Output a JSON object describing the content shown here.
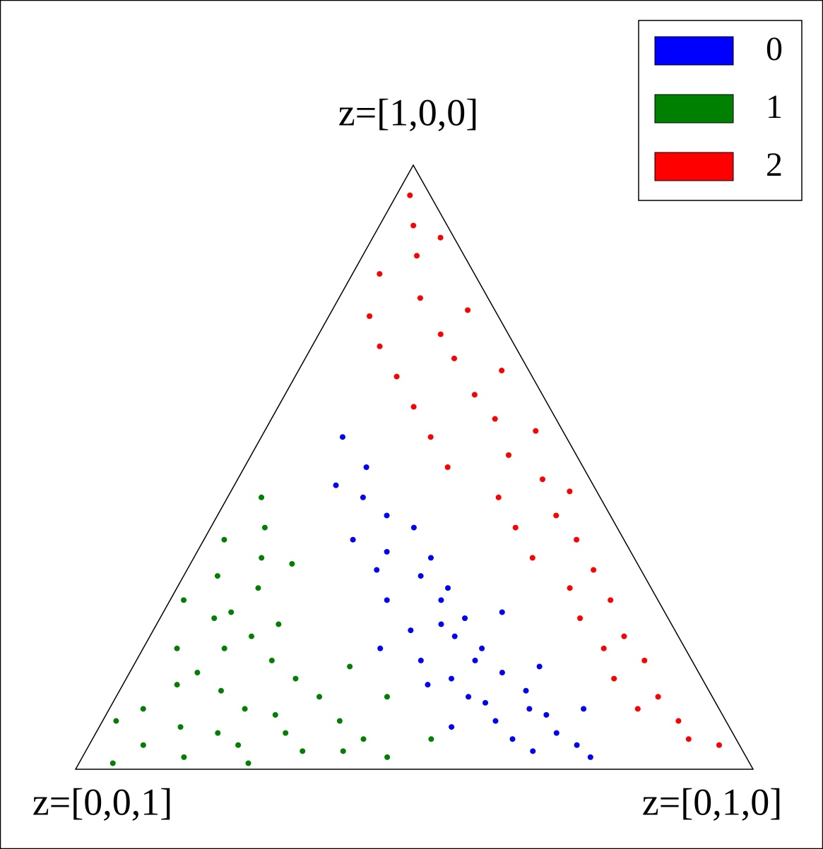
{
  "chart_data": {
    "type": "ternary-scatter",
    "vertex_labels": [
      "z=[1,0,0]",
      "z=[0,1,0]",
      "z=[0,0,1]"
    ],
    "legend": "upper right",
    "series": [
      {
        "name": "0",
        "color": "#0000ff",
        "values": [
          [
            0.55,
            0.12
          ],
          [
            0.5,
            0.18
          ],
          [
            0.45,
            0.2
          ],
          [
            0.42,
            0.25
          ],
          [
            0.4,
            0.3
          ],
          [
            0.38,
            0.22
          ],
          [
            0.35,
            0.35
          ],
          [
            0.33,
            0.28
          ],
          [
            0.3,
            0.4
          ],
          [
            0.28,
            0.32
          ],
          [
            0.25,
            0.45
          ],
          [
            0.23,
            0.38
          ],
          [
            0.2,
            0.5
          ],
          [
            0.18,
            0.42
          ],
          [
            0.16,
            0.55
          ],
          [
            0.15,
            0.48
          ],
          [
            0.13,
            0.6
          ],
          [
            0.12,
            0.52
          ],
          [
            0.1,
            0.62
          ],
          [
            0.08,
            0.58
          ],
          [
            0.06,
            0.68
          ],
          [
            0.05,
            0.62
          ],
          [
            0.04,
            0.72
          ],
          [
            0.03,
            0.66
          ],
          [
            0.02,
            0.75
          ],
          [
            0.22,
            0.45
          ],
          [
            0.2,
            0.35
          ],
          [
            0.18,
            0.5
          ],
          [
            0.14,
            0.45
          ],
          [
            0.11,
            0.55
          ],
          [
            0.28,
            0.4
          ],
          [
            0.32,
            0.35
          ],
          [
            0.26,
            0.5
          ],
          [
            0.09,
            0.65
          ],
          [
            0.07,
            0.52
          ],
          [
            0.47,
            0.15
          ],
          [
            0.36,
            0.28
          ],
          [
            0.24,
            0.42
          ],
          [
            0.17,
            0.6
          ],
          [
            0.1,
            0.7
          ]
        ]
      },
      {
        "name": "1",
        "color": "#008000",
        "values": [
          [
            0.45,
            0.05
          ],
          [
            0.4,
            0.08
          ],
          [
            0.38,
            0.03
          ],
          [
            0.35,
            0.1
          ],
          [
            0.32,
            0.05
          ],
          [
            0.3,
            0.12
          ],
          [
            0.28,
            0.02
          ],
          [
            0.25,
            0.08
          ],
          [
            0.22,
            0.15
          ],
          [
            0.2,
            0.05
          ],
          [
            0.18,
            0.2
          ],
          [
            0.16,
            0.1
          ],
          [
            0.15,
            0.25
          ],
          [
            0.13,
            0.15
          ],
          [
            0.12,
            0.3
          ],
          [
            0.1,
            0.05
          ],
          [
            0.1,
            0.2
          ],
          [
            0.08,
            0.35
          ],
          [
            0.07,
            0.12
          ],
          [
            0.06,
            0.28
          ],
          [
            0.05,
            0.4
          ],
          [
            0.04,
            0.08
          ],
          [
            0.04,
            0.22
          ],
          [
            0.03,
            0.32
          ],
          [
            0.02,
            0.45
          ],
          [
            0.02,
            0.15
          ],
          [
            0.01,
            0.05
          ],
          [
            0.06,
            0.18
          ],
          [
            0.09,
            0.25
          ],
          [
            0.14,
            0.08
          ],
          [
            0.2,
            0.12
          ],
          [
            0.24,
            0.18
          ],
          [
            0.05,
            0.5
          ],
          [
            0.03,
            0.38
          ],
          [
            0.08,
            0.02
          ],
          [
            0.12,
            0.4
          ],
          [
            0.26,
            0.1
          ],
          [
            0.34,
            0.15
          ],
          [
            0.17,
            0.32
          ],
          [
            0.01,
            0.25
          ]
        ]
      },
      {
        "name": "2",
        "color": "#ff0000",
        "values": [
          [
            0.95,
            0.02
          ],
          [
            0.9,
            0.05
          ],
          [
            0.85,
            0.08
          ],
          [
            0.82,
            0.04
          ],
          [
            0.78,
            0.12
          ],
          [
            0.75,
            0.06
          ],
          [
            0.72,
            0.18
          ],
          [
            0.7,
            0.1
          ],
          [
            0.68,
            0.22
          ],
          [
            0.65,
            0.15
          ],
          [
            0.62,
            0.28
          ],
          [
            0.6,
            0.2
          ],
          [
            0.58,
            0.33
          ],
          [
            0.55,
            0.25
          ],
          [
            0.52,
            0.38
          ],
          [
            0.5,
            0.3
          ],
          [
            0.48,
            0.45
          ],
          [
            0.45,
            0.4
          ],
          [
            0.42,
            0.5
          ],
          [
            0.4,
            0.45
          ],
          [
            0.38,
            0.55
          ],
          [
            0.35,
            0.5
          ],
          [
            0.33,
            0.6
          ],
          [
            0.3,
            0.58
          ],
          [
            0.28,
            0.65
          ],
          [
            0.25,
            0.62
          ],
          [
            0.22,
            0.7
          ],
          [
            0.2,
            0.68
          ],
          [
            0.18,
            0.75
          ],
          [
            0.15,
            0.72
          ],
          [
            0.12,
            0.8
          ],
          [
            0.1,
            0.78
          ],
          [
            0.08,
            0.85
          ],
          [
            0.05,
            0.88
          ],
          [
            0.04,
            0.93
          ],
          [
            0.88,
            0.1
          ],
          [
            0.76,
            0.2
          ],
          [
            0.66,
            0.3
          ],
          [
            0.56,
            0.4
          ],
          [
            0.46,
            0.5
          ]
        ]
      }
    ]
  }
}
